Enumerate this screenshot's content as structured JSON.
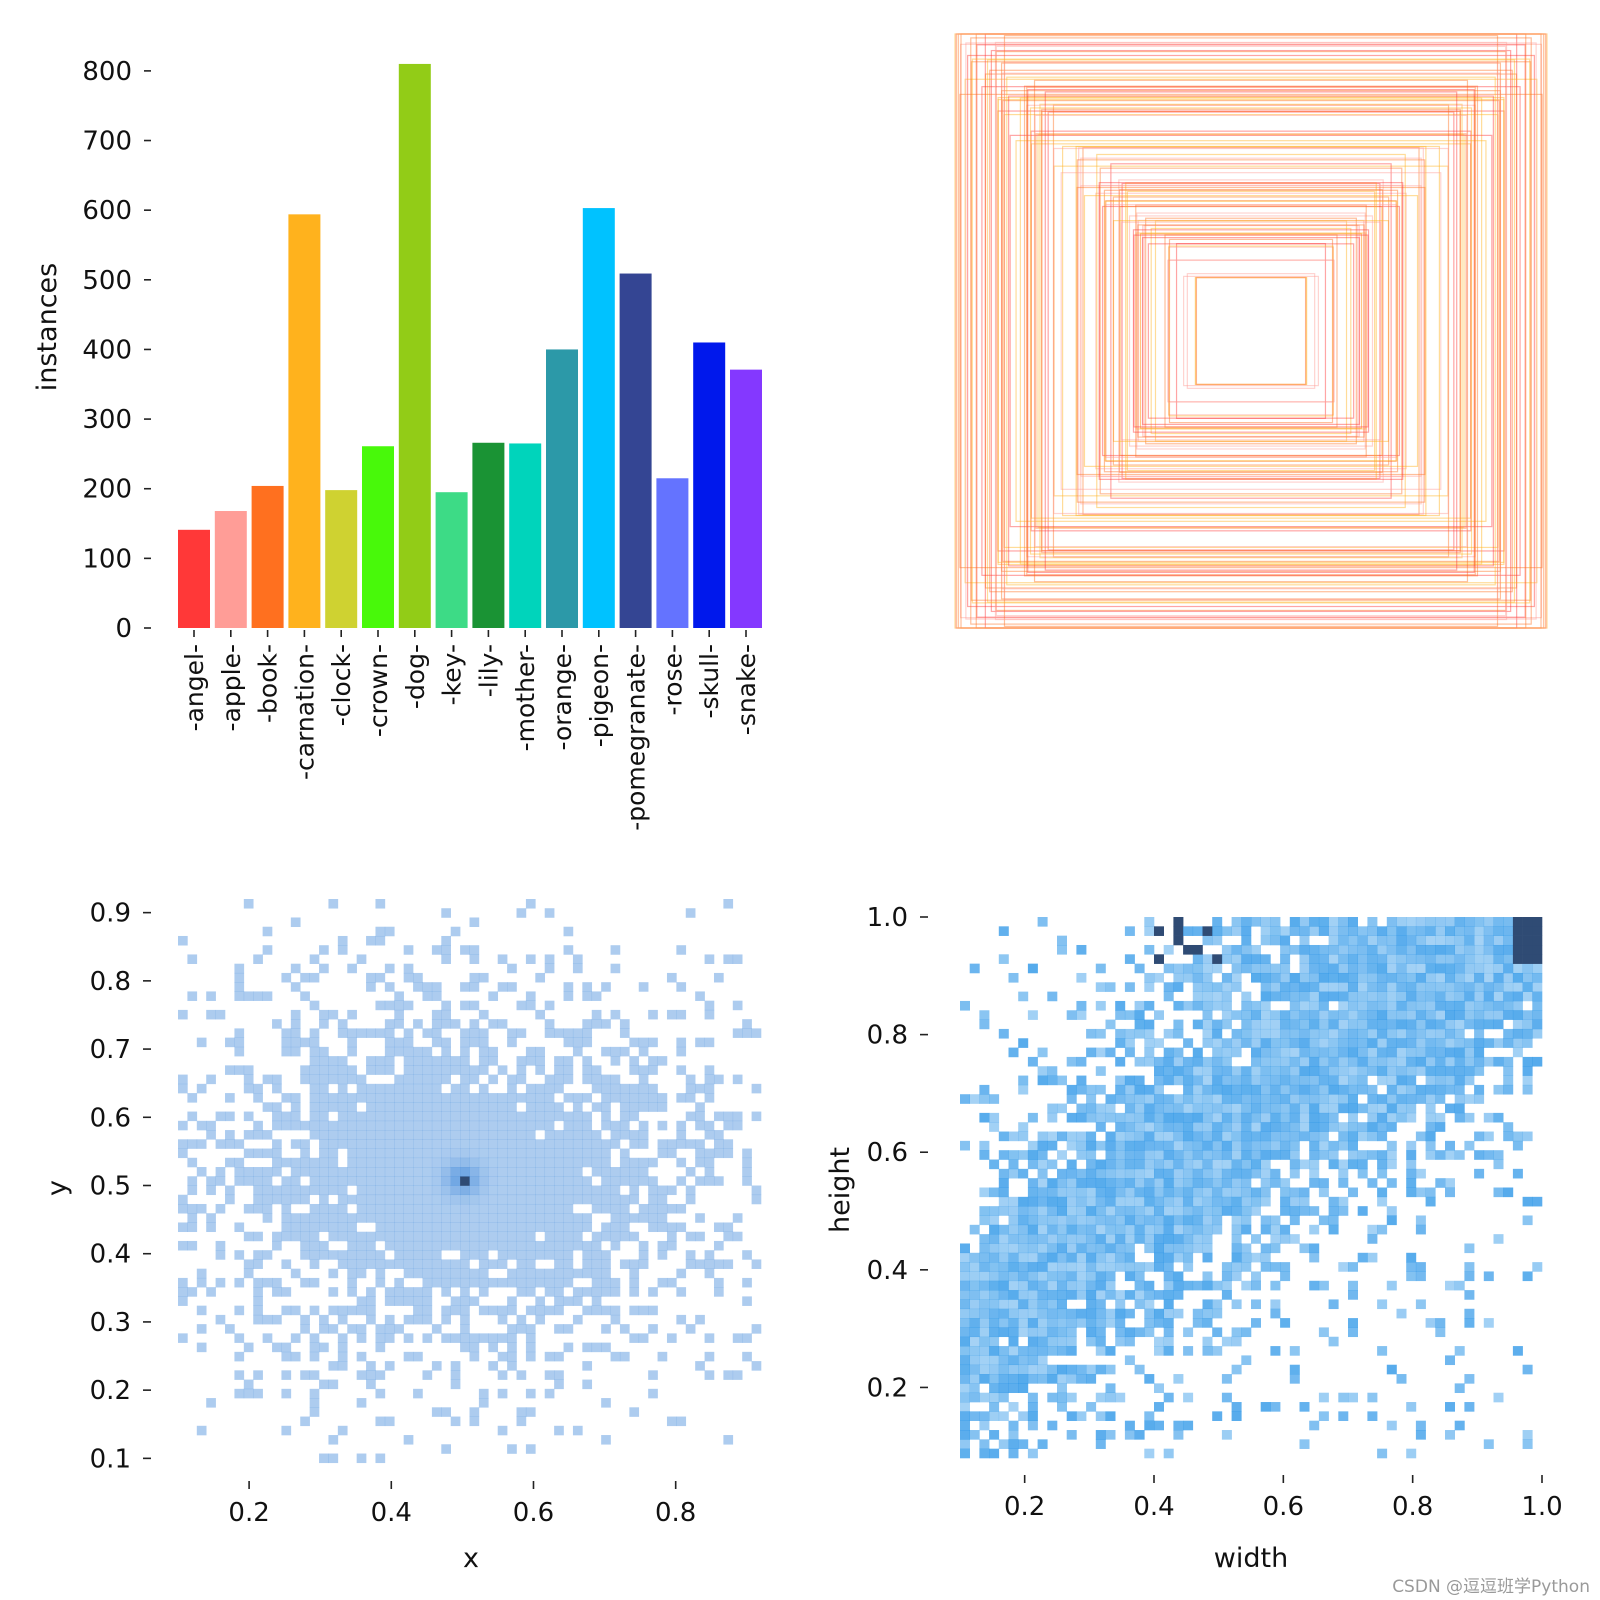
{
  "watermark": "CSDN @逗逗班学Python",
  "chart_data": [
    {
      "type": "bar",
      "ylabel": "instances",
      "ylim": [
        0,
        830
      ],
      "yticks": [
        0,
        100,
        200,
        300,
        400,
        500,
        600,
        700,
        800
      ],
      "categories": [
        "-angel-",
        "-apple-",
        "-book-",
        "-carnation-",
        "-clock-",
        "-crown-",
        "-dog-",
        "-key-",
        "-lily-",
        "-mother-",
        "-orange-",
        "-pigeon-",
        "-pomegranate-",
        "-rose-",
        "-skull-",
        "-snake-"
      ],
      "values": [
        141,
        168,
        204,
        594,
        198,
        261,
        810,
        195,
        266,
        265,
        400,
        603,
        509,
        215,
        410,
        371
      ],
      "colors": [
        "#ff3838",
        "#ff9d97",
        "#ff701f",
        "#ffb21d",
        "#cfd231",
        "#48f90a",
        "#92cc17",
        "#3ddb86",
        "#1a9334",
        "#00d4bb",
        "#2c99a8",
        "#00c2ff",
        "#344593",
        "#6473ff",
        "#0018ec",
        "#8438ff"
      ]
    },
    {
      "type": "other",
      "description_free": true,
      "rect_count": 120,
      "colors": [
        "#ff3838",
        "#ff701f",
        "#ffb21d",
        "#ff9d97"
      ]
    },
    {
      "type": "heatmap",
      "xlabel": "x",
      "ylabel": "y",
      "xlim": [
        0.1,
        0.92
      ],
      "ylim": [
        0.08,
        0.92
      ],
      "xticks": [
        0.2,
        0.4,
        0.6,
        0.8
      ],
      "yticks": [
        0.1,
        0.2,
        0.3,
        0.4,
        0.5,
        0.6,
        0.7,
        0.8,
        0.9
      ],
      "peak": [
        0.5,
        0.51
      ],
      "color": "#4a8fdc",
      "dark_color": "#2f4b74"
    },
    {
      "type": "heatmap",
      "xlabel": "width",
      "ylabel": "height",
      "xlim": [
        0.1,
        1.0
      ],
      "ylim": [
        0.08,
        1.0
      ],
      "xticks": [
        0.2,
        0.4,
        0.6,
        0.8,
        1.0
      ],
      "yticks": [
        0.2,
        0.4,
        0.6,
        0.8,
        1.0
      ],
      "color": "#1e8fe6",
      "dark_color": "#2f4b74"
    }
  ]
}
